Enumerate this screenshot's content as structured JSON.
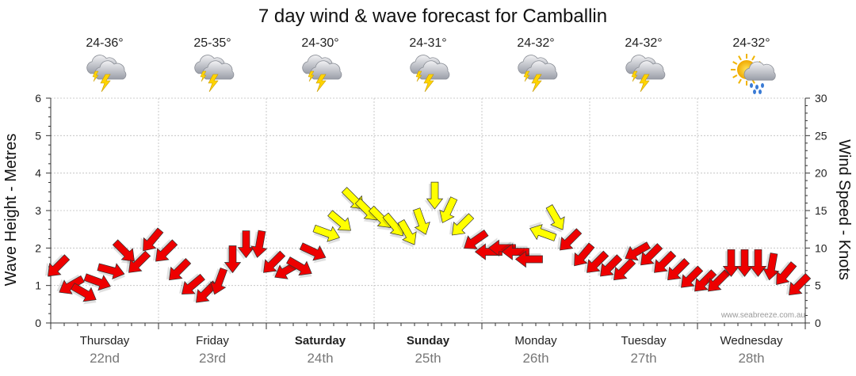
{
  "chart_data": {
    "type": "line",
    "title": "7 day wind & wave forecast for Camballin",
    "ylabel_left": "Wave Height - Metres",
    "ylabel_right": "Wind Speed - Knots",
    "ylim_left": [
      0,
      6
    ],
    "ylim_right": [
      0,
      30
    ],
    "left_ticks": [
      "0",
      "1",
      "2",
      "3",
      "4",
      "5",
      "6"
    ],
    "right_ticks": [
      "0",
      "5",
      "10",
      "15",
      "20",
      "25",
      "30"
    ],
    "days": [
      {
        "name": "Thursday",
        "date": "22nd",
        "temp": "24-36°",
        "icon": "storm",
        "bold": false
      },
      {
        "name": "Friday",
        "date": "23rd",
        "temp": "25-35°",
        "icon": "storm",
        "bold": false
      },
      {
        "name": "Saturday",
        "date": "24th",
        "temp": "24-30°",
        "icon": "storm",
        "bold": true
      },
      {
        "name": "Sunday",
        "date": "25th",
        "temp": "24-31°",
        "icon": "storm",
        "bold": true
      },
      {
        "name": "Monday",
        "date": "26th",
        "temp": "24-32°",
        "icon": "storm",
        "bold": false
      },
      {
        "name": "Tuesday",
        "date": "27th",
        "temp": "24-32°",
        "icon": "storm",
        "bold": false
      },
      {
        "name": "Wednesday",
        "date": "28th",
        "temp": "24-32°",
        "icon": "sun-shower",
        "bold": false
      }
    ],
    "series": [
      {
        "name": "Wind Speed (knots)",
        "note": "8 points per day (3-hourly), arrows point in the wind travel direction",
        "values": [
          7.5,
          5.0,
          4.0,
          5.5,
          7.0,
          9.5,
          8.0,
          11.0,
          9.5,
          7.0,
          5.0,
          4.0,
          5.5,
          8.5,
          10.5,
          10.5,
          8.0,
          7.0,
          7.5,
          9.5,
          12.0,
          13.5,
          16.5,
          15.0,
          14.0,
          13.0,
          12.0,
          13.5,
          17.0,
          15.0,
          13.0,
          11.0,
          9.5,
          10.0,
          9.5,
          8.5,
          12.0,
          14.0,
          11.0,
          9.0,
          8.0,
          7.5,
          7.0,
          9.5,
          9.0,
          8.0,
          7.0,
          6.0,
          5.5,
          5.5,
          8.0,
          8.0,
          8.0,
          7.5,
          6.5,
          5.0
        ],
        "directions_deg": [
          135,
          150,
          30,
          20,
          15,
          45,
          135,
          130,
          135,
          135,
          140,
          135,
          110,
          90,
          90,
          100,
          135,
          150,
          30,
          25,
          20,
          40,
          45,
          45,
          45,
          50,
          60,
          70,
          90,
          115,
          135,
          145,
          180,
          180,
          180,
          180,
          200,
          60,
          135,
          130,
          135,
          135,
          135,
          150,
          135,
          135,
          135,
          135,
          135,
          135,
          90,
          90,
          90,
          100,
          130,
          135
        ],
        "colors": {
          "light": "#ee0000",
          "moderate": "#ffff00"
        },
        "moderate_threshold_knots": 12
      }
    ],
    "credit": "www.seabreeze.com.au"
  }
}
